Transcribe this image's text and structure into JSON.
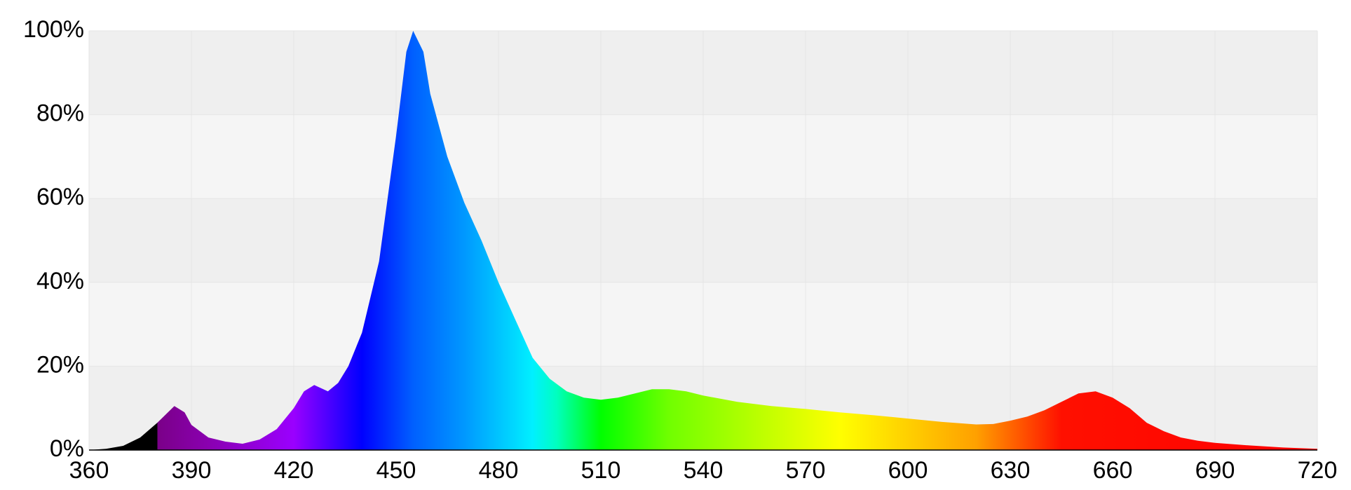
{
  "chart_data": {
    "type": "area",
    "x": [
      360,
      365,
      370,
      375,
      380,
      385,
      388,
      390,
      395,
      400,
      405,
      410,
      415,
      420,
      423,
      426,
      430,
      433,
      436,
      440,
      445,
      450,
      453,
      455,
      458,
      460,
      465,
      470,
      475,
      480,
      485,
      490,
      495,
      500,
      505,
      510,
      515,
      520,
      525,
      530,
      535,
      540,
      550,
      560,
      570,
      580,
      590,
      600,
      610,
      620,
      625,
      630,
      635,
      640,
      645,
      650,
      655,
      660,
      665,
      670,
      675,
      680,
      685,
      690,
      700,
      710,
      720
    ],
    "values": [
      0,
      0.3,
      1,
      3,
      6.5,
      10.5,
      9,
      6,
      3,
      2,
      1.5,
      2.5,
      5,
      10,
      14,
      15.5,
      14,
      16,
      20,
      28,
      45,
      75,
      95,
      100,
      95,
      85,
      70,
      59,
      50,
      40,
      31,
      22,
      17,
      14,
      12.5,
      12,
      12.5,
      13.5,
      14.5,
      14.5,
      14,
      13,
      11.5,
      10.5,
      9.8,
      9,
      8.3,
      7.5,
      6.7,
      6.1,
      6.2,
      7,
      8,
      9.5,
      11.5,
      13.5,
      14,
      12.5,
      10,
      6.5,
      4.5,
      3,
      2.2,
      1.7,
      1.1,
      0.6,
      0.3
    ],
    "xlim": [
      360,
      720
    ],
    "xticks": [
      360,
      390,
      420,
      450,
      480,
      510,
      540,
      570,
      600,
      630,
      660,
      690,
      720
    ],
    "ylim": [
      0,
      100
    ],
    "yticks": [
      {
        "value": 0,
        "label": "0%"
      },
      {
        "value": 20,
        "label": "20%"
      },
      {
        "value": 40,
        "label": "40%"
      },
      {
        "value": 60,
        "label": "60%"
      },
      {
        "value": 80,
        "label": "80%"
      },
      {
        "value": 100,
        "label": "100%"
      }
    ],
    "grid": true
  }
}
